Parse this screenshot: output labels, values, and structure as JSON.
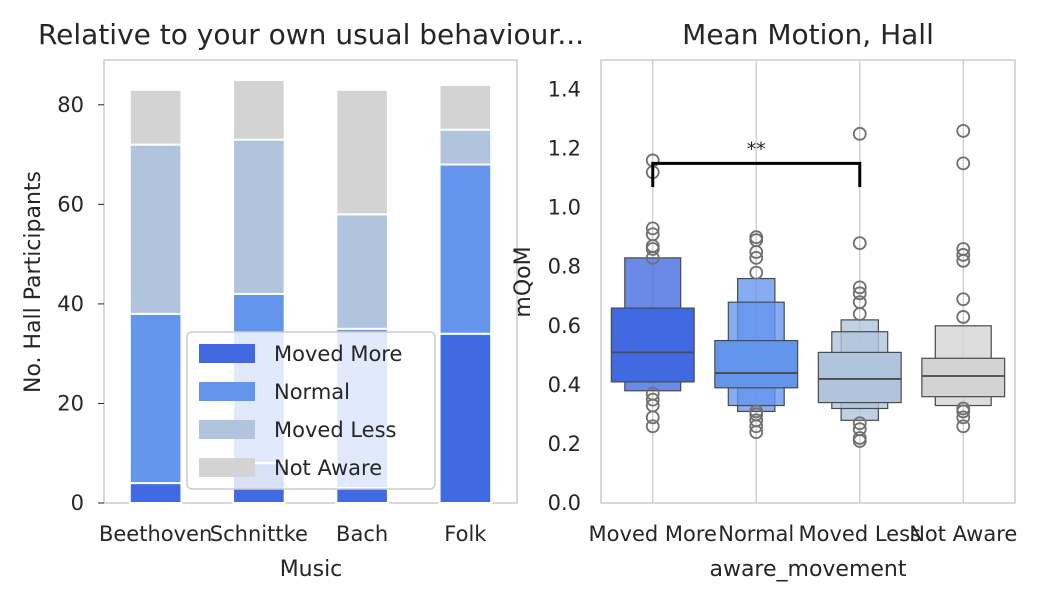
{
  "chart_data": [
    {
      "type": "bar",
      "stacked": true,
      "title": "Relative to your own usual behaviour...",
      "xlabel": "Music",
      "ylabel": "No. Hall Participants",
      "categories": [
        "Beethoven",
        "Schnittke",
        "Bach",
        "Folk"
      ],
      "ylim": [
        0,
        89
      ],
      "yticks": [
        0,
        20,
        40,
        60,
        80
      ],
      "grid": false,
      "legend_position": "bottom-right",
      "series": [
        {
          "name": "Moved More",
          "color": "#4169e1",
          "values": [
            4,
            8,
            3,
            34
          ]
        },
        {
          "name": "Normal",
          "color": "#6495ed",
          "values": [
            34,
            34,
            32,
            34
          ]
        },
        {
          "name": "Moved Less",
          "color": "#b0c4de",
          "values": [
            34,
            31,
            23,
            7
          ]
        },
        {
          "name": "Not Aware",
          "color": "#d3d3d3",
          "values": [
            11,
            12,
            25,
            9
          ]
        }
      ]
    },
    {
      "type": "boxen",
      "title": "Mean Motion, Hall",
      "xlabel": "aware_movement",
      "ylabel": "mQoM",
      "categories": [
        "Moved More",
        "Normal",
        "Moved Less",
        "Not Aware"
      ],
      "ylim": [
        0,
        1.5
      ],
      "yticks": [
        "0.0",
        "0.2",
        "0.4",
        "0.6",
        "0.8",
        "1.0",
        "1.2",
        "1.4"
      ],
      "grid": "vertical",
      "significance": {
        "from": "Moved More",
        "to": "Moved Less",
        "y": 1.15,
        "label": "**"
      },
      "groups": [
        {
          "name": "Moved More",
          "color": "#4169e1",
          "median": 0.51,
          "boxes": [
            [
              0.41,
              0.66
            ],
            [
              0.38,
              0.83
            ]
          ],
          "outliers": [
            1.16,
            1.12,
            0.93,
            0.91,
            0.87,
            0.86,
            0.83,
            0.37,
            0.35,
            0.33,
            0.29,
            0.26
          ]
        },
        {
          "name": "Normal",
          "color": "#6495ed",
          "median": 0.44,
          "boxes": [
            [
              0.39,
              0.55
            ],
            [
              0.33,
              0.68
            ],
            [
              0.31,
              0.76
            ]
          ],
          "outliers": [
            0.9,
            0.89,
            0.85,
            0.83,
            0.78,
            0.31,
            0.3,
            0.28,
            0.26,
            0.24
          ]
        },
        {
          "name": "Moved Less",
          "color": "#b0c4de",
          "median": 0.42,
          "boxes": [
            [
              0.34,
              0.51
            ],
            [
              0.32,
              0.58
            ],
            [
              0.28,
              0.62
            ]
          ],
          "outliers": [
            1.25,
            0.88,
            0.73,
            0.71,
            0.68,
            0.64,
            0.27,
            0.25,
            0.22,
            0.21
          ]
        },
        {
          "name": "Not Aware",
          "color": "#d3d3d3",
          "median": 0.43,
          "boxes": [
            [
              0.36,
              0.49
            ],
            [
              0.33,
              0.6
            ]
          ],
          "outliers": [
            1.26,
            1.15,
            0.86,
            0.84,
            0.82,
            0.69,
            0.63,
            0.32,
            0.31,
            0.29,
            0.26
          ]
        }
      ]
    }
  ]
}
